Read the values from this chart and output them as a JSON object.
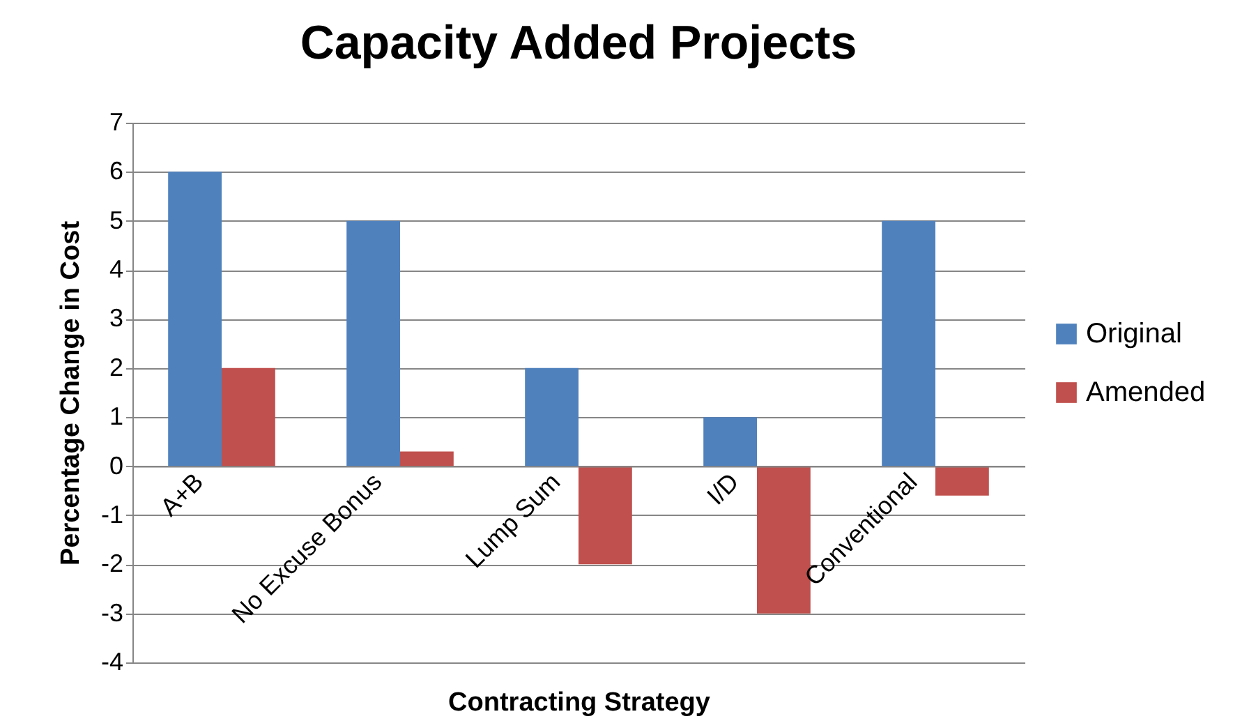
{
  "chart_data": {
    "type": "bar",
    "title": "Capacity Added Projects",
    "xlabel": "Contracting Strategy",
    "ylabel": "Percentage Change in Cost",
    "categories": [
      "A+B",
      "No Excuse Bonus",
      "Lump Sum",
      "I/D",
      "Conventional"
    ],
    "series": [
      {
        "name": "Original",
        "color": "#4f81bd",
        "values": [
          6,
          5,
          2,
          1,
          5
        ]
      },
      {
        "name": "Amended",
        "color": "#c0504d",
        "values": [
          2,
          0.3,
          -2,
          -3,
          -0.6
        ]
      }
    ],
    "ylim": [
      -4,
      7
    ],
    "yticks": [
      -4,
      -3,
      -2,
      -1,
      0,
      1,
      2,
      3,
      4,
      5,
      6,
      7
    ],
    "grid": "y",
    "legend": "right"
  }
}
